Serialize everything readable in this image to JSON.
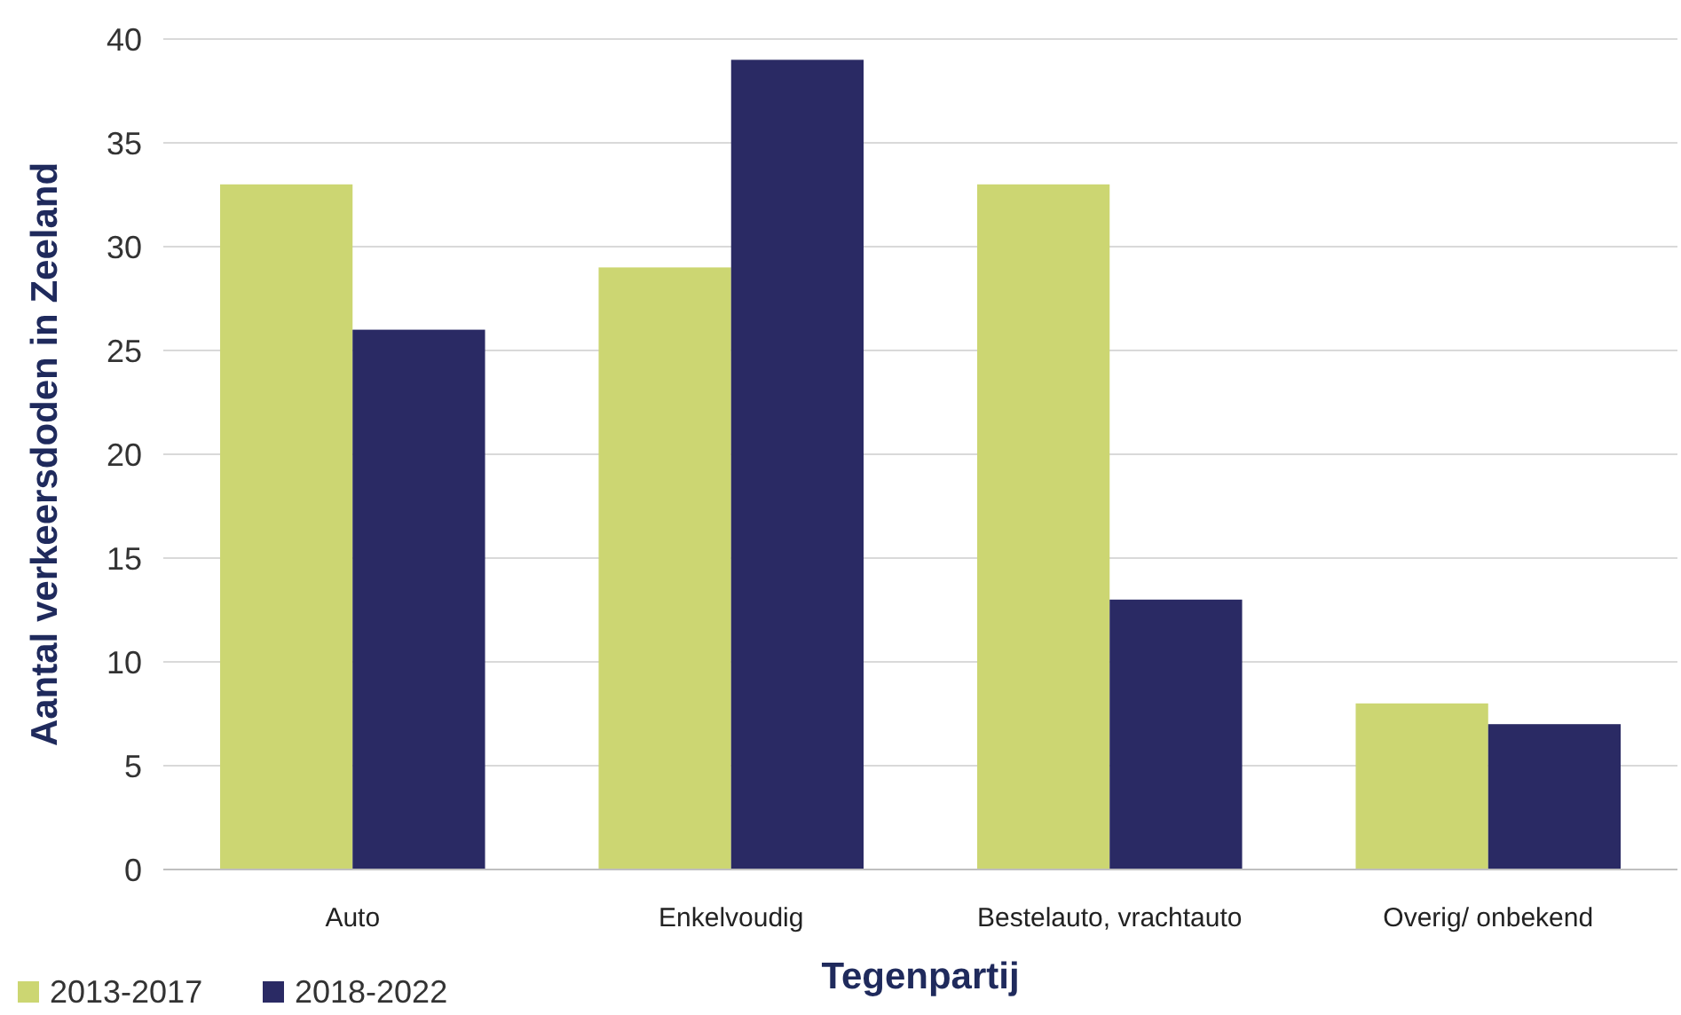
{
  "chart_data": {
    "type": "bar",
    "xlabel": "Tegenpartij",
    "ylabel": "Aantal verkeersdoden in Zeeland",
    "categories": [
      "Auto",
      "Enkelvoudig",
      "Bestelauto, vrachtauto",
      "Overig/ onbekend"
    ],
    "series": [
      {
        "name": "2013-2017",
        "color": "#ccd672",
        "values": [
          33,
          29,
          33,
          8
        ]
      },
      {
        "name": "2018-2022",
        "color": "#2a2a64",
        "values": [
          26,
          39,
          13,
          7
        ]
      }
    ],
    "ylim": [
      0,
      40
    ],
    "yticks": [
      0,
      5,
      10,
      15,
      20,
      25,
      30,
      35,
      40
    ],
    "grid": "y",
    "legend": "bottom left"
  }
}
